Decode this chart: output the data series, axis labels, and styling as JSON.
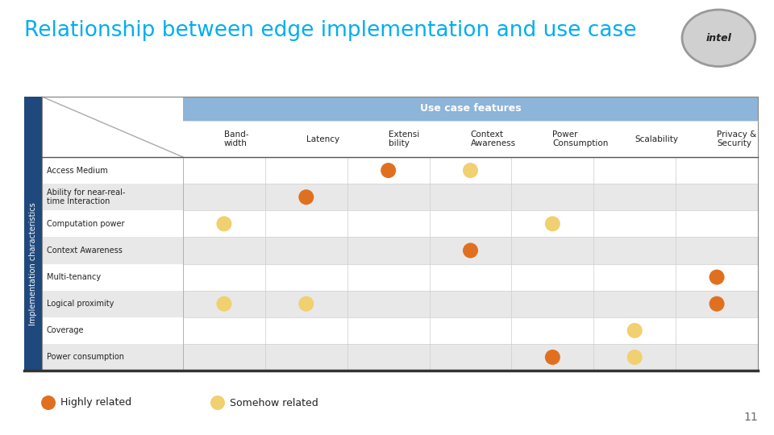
{
  "title": "Relationship between edge implementation and use case",
  "title_color": "#00AEEF",
  "background_color": "#FFFFFF",
  "header_bg": "#8DB4D9",
  "header_text": "Use case features",
  "header_text_color": "#FFFFFF",
  "sidebar_bg": "#1F497D",
  "sidebar_text": "Implementation characteristics",
  "sidebar_text_color": "#FFFFFF",
  "col_headers": [
    "Band-\nwidth",
    "Latency",
    "Extensi\nbility",
    "Context\nAwareness",
    "Power\nConsumption",
    "Scalability",
    "Privacy &\nSecurity"
  ],
  "row_headers": [
    "Access Medium",
    "Ability for near-real-\ntime Interaction",
    "Computation power",
    "Context Awareness",
    "Multi-tenancy",
    "Logical proximity",
    "Coverage",
    "Power consumption"
  ],
  "highly_related_color": "#E07020",
  "somehow_related_color": "#F0D070",
  "dots": [
    {
      "row": 0,
      "col": 2,
      "type": "highly"
    },
    {
      "row": 0,
      "col": 3,
      "type": "somehow"
    },
    {
      "row": 1,
      "col": 1,
      "type": "highly"
    },
    {
      "row": 2,
      "col": 0,
      "type": "somehow"
    },
    {
      "row": 2,
      "col": 4,
      "type": "somehow"
    },
    {
      "row": 3,
      "col": 3,
      "type": "highly"
    },
    {
      "row": 4,
      "col": 6,
      "type": "highly"
    },
    {
      "row": 5,
      "col": 0,
      "type": "somehow"
    },
    {
      "row": 5,
      "col": 1,
      "type": "somehow"
    },
    {
      "row": 5,
      "col": 6,
      "type": "highly"
    },
    {
      "row": 6,
      "col": 5,
      "type": "somehow"
    },
    {
      "row": 7,
      "col": 4,
      "type": "highly"
    },
    {
      "row": 7,
      "col": 5,
      "type": "somehow"
    }
  ],
  "num_cols": 7,
  "num_rows": 8,
  "page_number": "11",
  "row_colors": [
    "#FFFFFF",
    "#E8E8E8"
  ]
}
